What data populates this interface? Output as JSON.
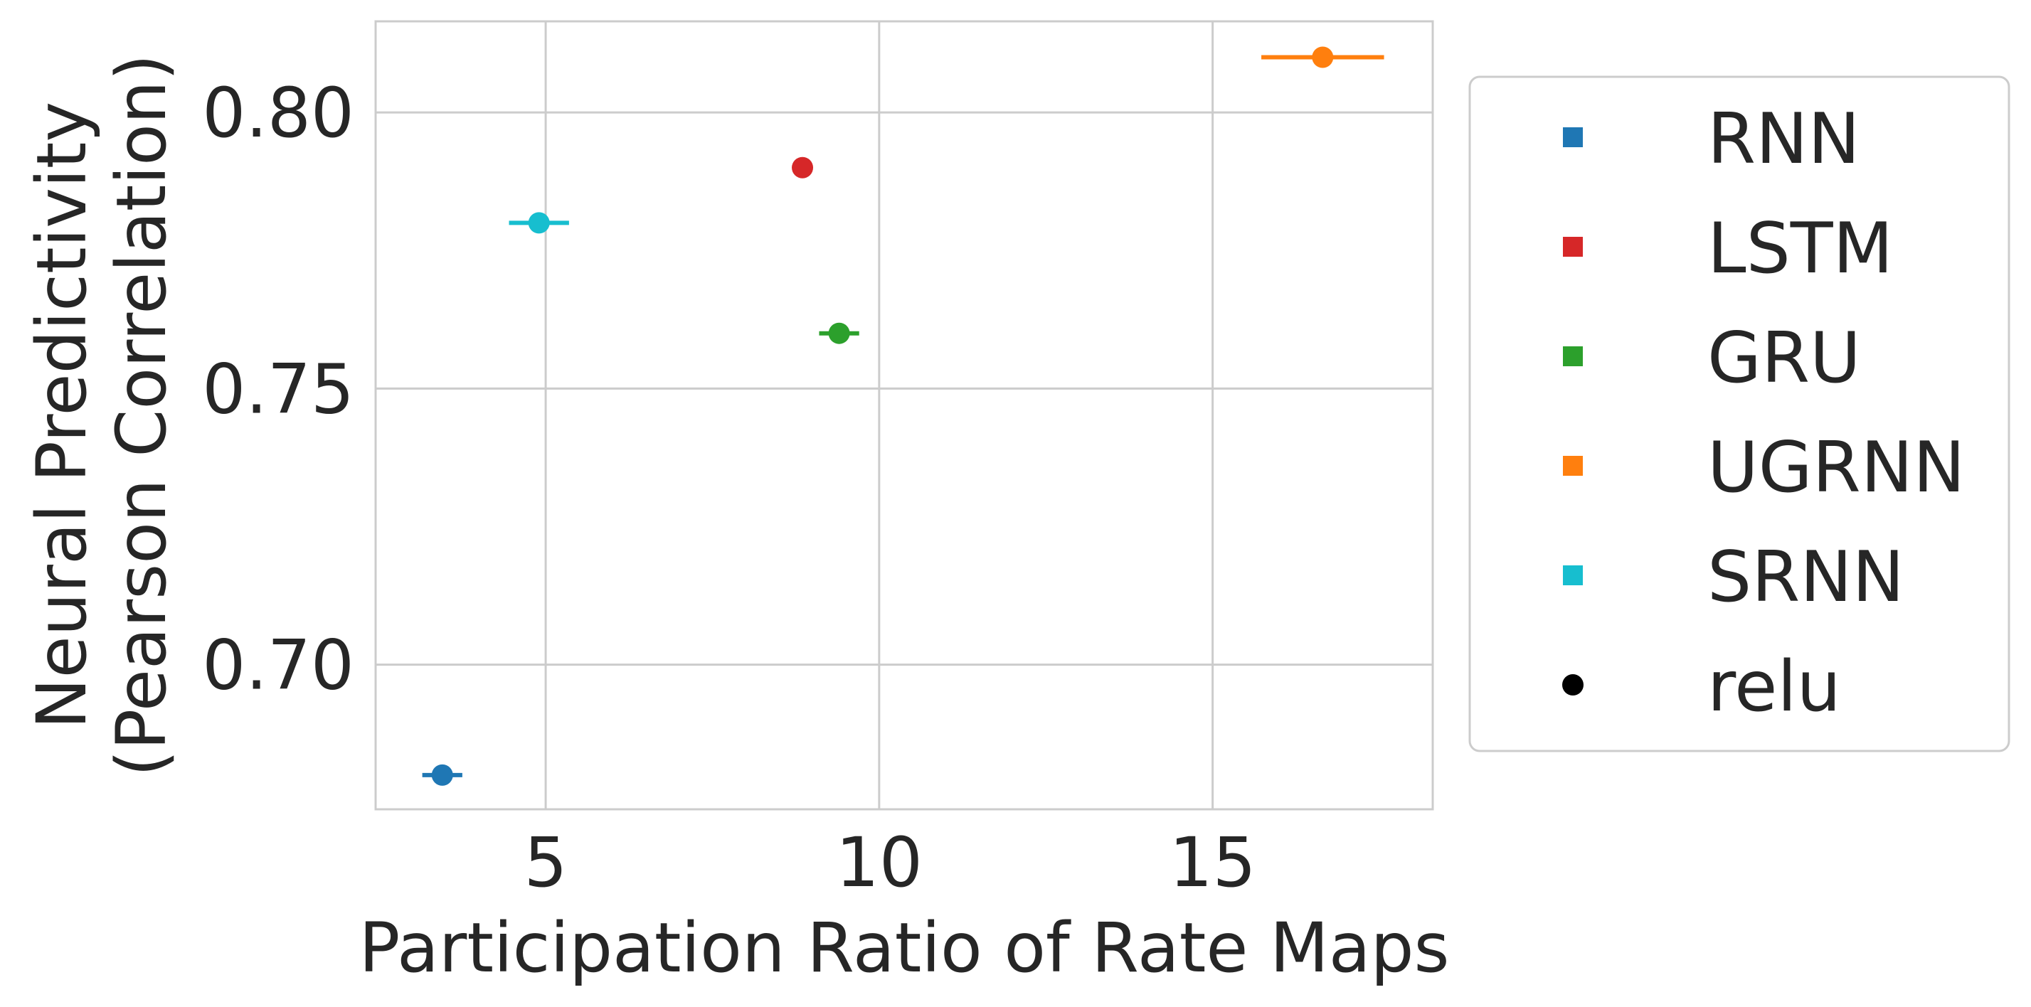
{
  "chart_data": {
    "type": "scatter",
    "xlabel": "Participation Ratio of Rate Maps",
    "ylabel_line1": "Neural Predictivity",
    "ylabel_line2": "(Pearson Correlation)",
    "xlim": [
      2.45,
      18.3
    ],
    "ylim": [
      0.6738,
      0.8165
    ],
    "xticks": [
      5,
      10,
      15
    ],
    "yticks": [
      0.7,
      0.75,
      0.8
    ],
    "xtick_labels": [
      "5",
      "10",
      "15"
    ],
    "ytick_labels": [
      "0.70",
      "0.75",
      "0.80"
    ],
    "grid": true,
    "legend_placement": "outside-right",
    "series": [
      {
        "name": "RNN",
        "color": "#1f77b4",
        "x": 3.45,
        "y": 0.68,
        "xerr": 0.3
      },
      {
        "name": "LSTM",
        "color": "#d62728",
        "x": 8.85,
        "y": 0.79,
        "xerr": 0.08
      },
      {
        "name": "GRU",
        "color": "#2ca02c",
        "x": 9.4,
        "y": 0.76,
        "xerr": 0.3
      },
      {
        "name": "UGRNN",
        "color": "#ff7f0e",
        "x": 16.65,
        "y": 0.81,
        "xerr": 0.92
      },
      {
        "name": "SRNN",
        "color": "#17becf",
        "x": 4.9,
        "y": 0.78,
        "xerr": 0.45
      }
    ],
    "marker_legend": {
      "name": "relu",
      "shape": "circle",
      "color": "#000000"
    }
  }
}
